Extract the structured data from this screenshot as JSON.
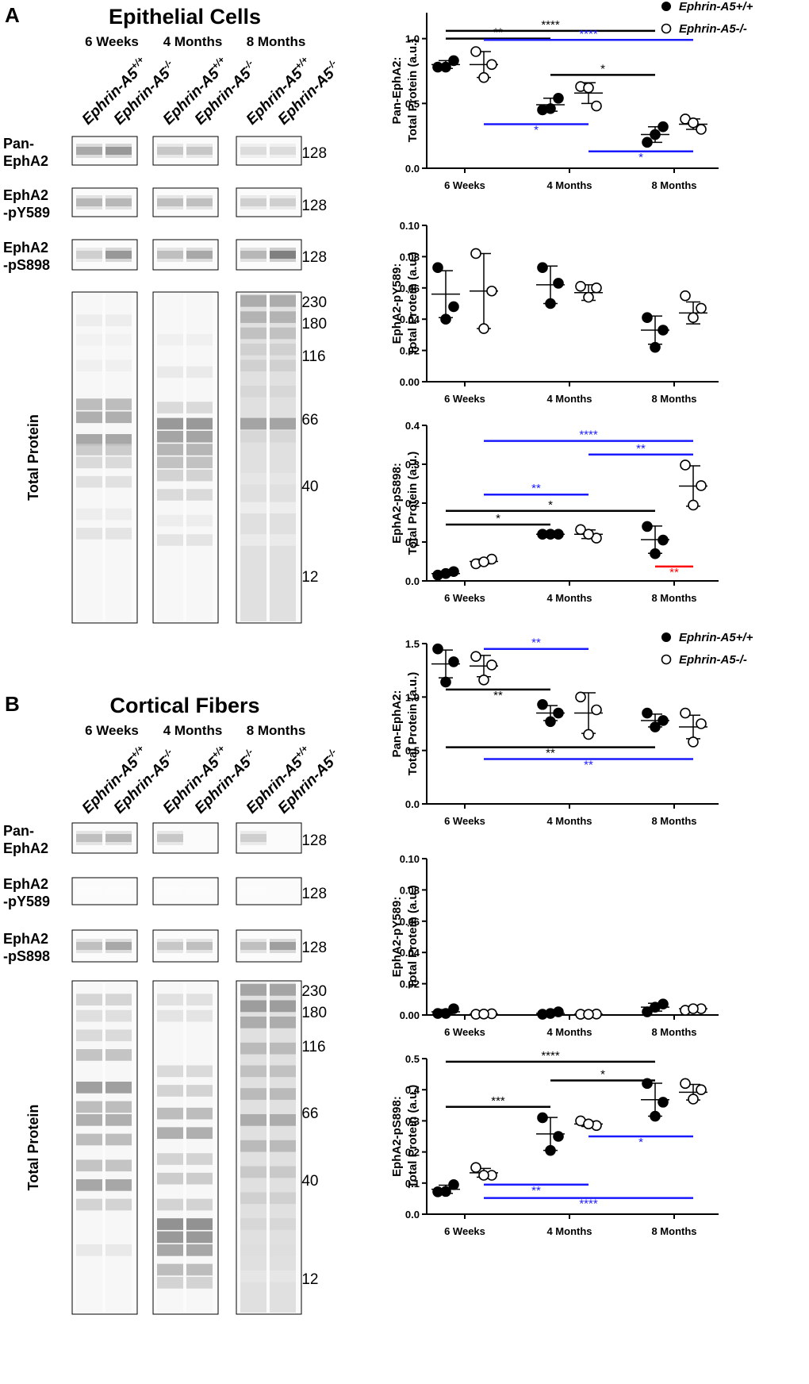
{
  "panels": [
    {
      "letter": "A",
      "title": "Epithelial Cells",
      "timepoints": [
        "6 Weeks",
        "4 Months",
        "8 Months"
      ],
      "genotype_labels": [
        "Ephrin-A5",
        "+/+",
        "Ephrin-A5",
        "-/-"
      ],
      "blot_rows": [
        {
          "label": [
            "Pan-",
            "EphA2"
          ],
          "mw": "-128"
        },
        {
          "label": [
            "EphA2",
            "-pY589"
          ],
          "mw": "-128"
        },
        {
          "label": [
            "EphA2",
            "-pS898"
          ],
          "mw": "-128"
        },
        {
          "label": [
            "Total Protein"
          ],
          "mw_markers": [
            "-230",
            "-180",
            "-116",
            "-66",
            "-40",
            "-12"
          ]
        }
      ]
    },
    {
      "letter": "B",
      "title": "Cortical Fibers",
      "timepoints": [
        "6 Weeks",
        "4 Months",
        "8 Months"
      ],
      "genotype_labels": [
        "Ephrin-A5",
        "+/+",
        "Ephrin-A5",
        "-/-"
      ],
      "blot_rows": [
        {
          "label": [
            "Pan-",
            "EphA2"
          ],
          "mw": "-128"
        },
        {
          "label": [
            "EphA2",
            "-pY589"
          ],
          "mw": "-128"
        },
        {
          "label": [
            "EphA2",
            "-pS898"
          ],
          "mw": "-128"
        },
        {
          "label": [
            "Total Protein"
          ],
          "mw_markers": [
            "-230",
            "-180",
            "-116",
            "-66",
            "-40",
            "-12"
          ]
        }
      ]
    }
  ],
  "legend": [
    "Ephrin-A5+/+",
    "Ephrin-A5-/-"
  ],
  "colors": {
    "black": "#000000",
    "blue": "#1a1aff",
    "red": "#ff0000"
  },
  "chart_data": [
    {
      "type": "scatter",
      "panel": "A",
      "ylabel": [
        "Pan-EphA2:",
        "Total Protein (a.u.)"
      ],
      "categories": [
        "6 Weeks",
        "4 Months",
        "8 Months"
      ],
      "ylim": [
        0,
        1.2
      ],
      "yticks": [
        "0.0",
        "0.5",
        "1.0"
      ],
      "ytick_values": [
        0,
        0.5,
        1.0
      ],
      "series": [
        {
          "name": "Ephrin-A5+/+",
          "points": [
            [
              0.78,
              0.83,
              0.78
            ],
            [
              0.45,
              0.54,
              0.46
            ],
            [
              0.2,
              0.32,
              0.26
            ]
          ],
          "mean": [
            0.8,
            0.49,
            0.26
          ],
          "sd": [
            0.03,
            0.05,
            0.06
          ]
        },
        {
          "name": "Ephrin-A5-/-",
          "points": [
            [
              0.9,
              0.8,
              0.7
            ],
            [
              0.63,
              0.48,
              0.62
            ],
            [
              0.38,
              0.3,
              0.35
            ]
          ],
          "mean": [
            0.8,
            0.58,
            0.34
          ],
          "sd": [
            0.1,
            0.08,
            0.04
          ]
        }
      ],
      "annotations": [
        {
          "x1": [
            0,
            0
          ],
          "x2": [
            2,
            0
          ],
          "y": 1.06,
          "label": "****",
          "color": "black"
        },
        {
          "x1": [
            0,
            0
          ],
          "x2": [
            1,
            0
          ],
          "y": 1.0,
          "label": "**",
          "color": "black"
        },
        {
          "x1": [
            0,
            1
          ],
          "x2": [
            2,
            1
          ],
          "y": 0.99,
          "label": "****",
          "color": "blue"
        },
        {
          "x1": [
            1,
            0
          ],
          "x2": [
            2,
            0
          ],
          "y": 0.72,
          "label": "*",
          "color": "black"
        },
        {
          "x1": [
            0,
            1
          ],
          "x2": [
            1,
            1
          ],
          "y": 0.34,
          "label": "*",
          "color": "blue",
          "below": true
        },
        {
          "x1": [
            1,
            1
          ],
          "x2": [
            2,
            1
          ],
          "y": 0.13,
          "label": "*",
          "color": "blue",
          "below": true
        }
      ]
    },
    {
      "type": "scatter",
      "panel": "A",
      "ylabel": [
        "EphA2-pY589:",
        "Total Protein (a.u.)"
      ],
      "categories": [
        "6 Weeks",
        "4 Months",
        "8 Months"
      ],
      "ylim": [
        0,
        0.1
      ],
      "yticks": [
        "0.00",
        "0.02",
        "0.04",
        "0.06",
        "0.08",
        "0.10"
      ],
      "ytick_values": [
        0,
        0.02,
        0.04,
        0.06,
        0.08,
        0.1
      ],
      "series": [
        {
          "name": "Ephrin-A5+/+",
          "points": [
            [
              0.073,
              0.048,
              0.04
            ],
            [
              0.073,
              0.063,
              0.05
            ],
            [
              0.041,
              0.033,
              0.022
            ]
          ],
          "mean": [
            0.056,
            0.062,
            0.033
          ],
          "sd": [
            0.015,
            0.012,
            0.009
          ]
        },
        {
          "name": "Ephrin-A5-/-",
          "points": [
            [
              0.082,
              0.058,
              0.034
            ],
            [
              0.061,
              0.06,
              0.054
            ],
            [
              0.055,
              0.047,
              0.041
            ]
          ],
          "mean": [
            0.058,
            0.057,
            0.044
          ],
          "sd": [
            0.024,
            0.005,
            0.007
          ]
        }
      ],
      "annotations": []
    },
    {
      "type": "scatter",
      "panel": "A",
      "ylabel": [
        "EphA2-pS898:",
        "Total Protein (a.u.)"
      ],
      "categories": [
        "6 Weeks",
        "4 Months",
        "8 Months"
      ],
      "ylim": [
        0,
        0.4
      ],
      "yticks": [
        "0.0",
        "0.1",
        "0.2",
        "0.3",
        "0.4"
      ],
      "ytick_values": [
        0,
        0.1,
        0.2,
        0.3,
        0.4
      ],
      "series": [
        {
          "name": "Ephrin-A5+/+",
          "points": [
            [
              0.015,
              0.024,
              0.019
            ],
            [
              0.12,
              0.12,
              0.12
            ],
            [
              0.14,
              0.105,
              0.07
            ]
          ],
          "mean": [
            0.019,
            0.12,
            0.106
          ],
          "sd": [
            0.005,
            0.002,
            0.035
          ]
        },
        {
          "name": "Ephrin-A5-/-",
          "points": [
            [
              0.044,
              0.056,
              0.049
            ],
            [
              0.132,
              0.11,
              0.12
            ],
            [
              0.298,
              0.245,
              0.195
            ]
          ],
          "mean": [
            0.05,
            0.12,
            0.244
          ],
          "sd": [
            0.006,
            0.011,
            0.052
          ]
        }
      ],
      "annotations": [
        {
          "x1": [
            0,
            1
          ],
          "x2": [
            2,
            1
          ],
          "y": 0.36,
          "label": "****",
          "color": "blue"
        },
        {
          "x1": [
            1,
            1
          ],
          "x2": [
            2,
            1
          ],
          "y": 0.325,
          "label": "**",
          "color": "blue"
        },
        {
          "x1": [
            0,
            1
          ],
          "x2": [
            1,
            1
          ],
          "y": 0.222,
          "label": "**",
          "color": "blue"
        },
        {
          "x1": [
            0,
            0
          ],
          "x2": [
            2,
            0
          ],
          "y": 0.18,
          "label": "*",
          "color": "black"
        },
        {
          "x1": [
            0,
            0
          ],
          "x2": [
            1,
            0
          ],
          "y": 0.145,
          "label": "*",
          "color": "black"
        },
        {
          "x1": [
            2,
            0
          ],
          "x2": [
            2,
            1
          ],
          "y": 0.037,
          "label": "**",
          "color": "red",
          "below": true
        }
      ]
    },
    {
      "type": "scatter",
      "panel": "B",
      "ylabel": [
        "Pan-EphA2:",
        "Total Protein (a.u.)"
      ],
      "categories": [
        "6 Weeks",
        "4 Months",
        "8 Months"
      ],
      "ylim": [
        0,
        1.5
      ],
      "yticks": [
        "0.0",
        "0.5",
        "1.0",
        "1.5"
      ],
      "ytick_values": [
        0,
        0.5,
        1.0,
        1.5
      ],
      "series": [
        {
          "name": "Ephrin-A5+/+",
          "points": [
            [
              1.45,
              1.33,
              1.14
            ],
            [
              0.93,
              0.85,
              0.77
            ],
            [
              0.85,
              0.78,
              0.72
            ]
          ],
          "mean": [
            1.31,
            0.85,
            0.78
          ],
          "sd": [
            0.13,
            0.07,
            0.06
          ]
        },
        {
          "name": "Ephrin-A5-/-",
          "points": [
            [
              1.38,
              1.3,
              1.16
            ],
            [
              1.0,
              0.88,
              0.65
            ],
            [
              0.85,
              0.75,
              0.58
            ]
          ],
          "mean": [
            1.29,
            0.85,
            0.72
          ],
          "sd": [
            0.1,
            0.19,
            0.11
          ]
        }
      ],
      "annotations": [
        {
          "x1": [
            0,
            1
          ],
          "x2": [
            1,
            1
          ],
          "y": 1.45,
          "label": "**",
          "color": "blue"
        },
        {
          "x1": [
            0,
            0
          ],
          "x2": [
            1,
            0
          ],
          "y": 1.07,
          "label": "**",
          "color": "black",
          "below": true
        },
        {
          "x1": [
            0,
            0
          ],
          "x2": [
            2,
            0
          ],
          "y": 0.53,
          "label": "**",
          "color": "black",
          "below": true
        },
        {
          "x1": [
            0,
            1
          ],
          "x2": [
            2,
            1
          ],
          "y": 0.42,
          "label": "**",
          "color": "blue",
          "below": true
        }
      ]
    },
    {
      "type": "scatter",
      "panel": "B",
      "ylabel": [
        "EphA2-pY589:",
        "Total Protein (a.u.)"
      ],
      "categories": [
        "6 Weeks",
        "4 Months",
        "8 Months"
      ],
      "ylim": [
        0,
        0.1
      ],
      "yticks": [
        "0.00",
        "0.02",
        "0.04",
        "0.06",
        "0.08",
        "0.10"
      ],
      "ytick_values": [
        0,
        0.02,
        0.04,
        0.06,
        0.08,
        0.1
      ],
      "series": [
        {
          "name": "Ephrin-A5+/+",
          "points": [
            [
              0.001,
              0.004,
              0.001
            ],
            [
              0.0005,
              0.002,
              0.001
            ],
            [
              0.002,
              0.007,
              0.005
            ]
          ],
          "mean": [
            0.002,
            0.001,
            0.005
          ],
          "sd": [
            0.0015,
            0.0008,
            0.0025
          ]
        },
        {
          "name": "Ephrin-A5-/-",
          "points": [
            [
              0.0005,
              0.0008,
              0.0006
            ],
            [
              0.0005,
              0.0006,
              0.0004
            ],
            [
              0.003,
              0.004,
              0.004
            ]
          ],
          "mean": [
            0.0006,
            0.0005,
            0.004
          ],
          "sd": [
            0.0001,
            0.0001,
            0.0005
          ]
        }
      ],
      "annotations": []
    },
    {
      "type": "scatter",
      "panel": "B",
      "ylabel": [
        "EphA2-pS898:",
        "Total Protein (a.u.)"
      ],
      "categories": [
        "6 Weeks",
        "4 Months",
        "8 Months"
      ],
      "ylim": [
        0,
        0.5
      ],
      "yticks": [
        "0.0",
        "0.1",
        "0.2",
        "0.3",
        "0.4",
        "0.5"
      ],
      "ytick_values": [
        0,
        0.1,
        0.2,
        0.3,
        0.4,
        0.5
      ],
      "series": [
        {
          "name": "Ephrin-A5+/+",
          "points": [
            [
              0.072,
              0.095,
              0.073
            ],
            [
              0.31,
              0.25,
              0.205
            ],
            [
              0.42,
              0.36,
              0.315
            ]
          ],
          "mean": [
            0.08,
            0.258,
            0.368
          ],
          "sd": [
            0.013,
            0.053,
            0.053
          ]
        },
        {
          "name": "Ephrin-A5-/-",
          "points": [
            [
              0.15,
              0.125,
              0.125
            ],
            [
              0.3,
              0.285,
              0.29
            ],
            [
              0.42,
              0.4,
              0.37
            ]
          ],
          "mean": [
            0.133,
            0.29,
            0.392
          ],
          "sd": [
            0.014,
            0.008,
            0.025
          ]
        }
      ],
      "annotations": [
        {
          "x1": [
            0,
            0
          ],
          "x2": [
            2,
            0
          ],
          "y": 0.49,
          "label": "****",
          "color": "black"
        },
        {
          "x1": [
            1,
            0
          ],
          "x2": [
            2,
            0
          ],
          "y": 0.43,
          "label": "*",
          "color": "black"
        },
        {
          "x1": [
            0,
            0
          ],
          "x2": [
            1,
            0
          ],
          "y": 0.345,
          "label": "***",
          "color": "black"
        },
        {
          "x1": [
            1,
            1
          ],
          "x2": [
            2,
            1
          ],
          "y": 0.25,
          "label": "*",
          "color": "blue",
          "below": true
        },
        {
          "x1": [
            0,
            1
          ],
          "x2": [
            1,
            1
          ],
          "y": 0.095,
          "label": "**",
          "color": "blue",
          "below": true
        },
        {
          "x1": [
            0,
            1
          ],
          "x2": [
            2,
            1
          ],
          "y": 0.052,
          "label": "****",
          "color": "blue",
          "below": true
        }
      ]
    }
  ]
}
